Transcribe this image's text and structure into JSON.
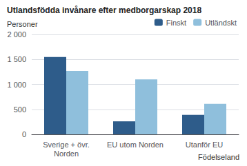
{
  "chart_data": {
    "type": "bar",
    "title": "Utlandsfödda invånare efter medborgarskap 2018",
    "y_label": "Personer",
    "x_label": "Födelseland",
    "categories": [
      "Sverige + övr.\nNorden",
      "EU utom Norden",
      "Utanför EU"
    ],
    "series": [
      {
        "name": "Finskt",
        "color": "#2E5C8A",
        "values": [
          1550,
          260,
          390
        ]
      },
      {
        "name": "Utländskt",
        "color": "#8FBFDC",
        "values": [
          1270,
          1100,
          610
        ]
      }
    ],
    "ylim": [
      0,
      2000
    ],
    "yticks": [
      0,
      500,
      {
        "value": 1000,
        "label": "1 000"
      },
      {
        "value": 1500,
        "label": "1 500"
      },
      {
        "value": 2000,
        "label": "2 000"
      }
    ],
    "grid": true,
    "legend": "top"
  }
}
